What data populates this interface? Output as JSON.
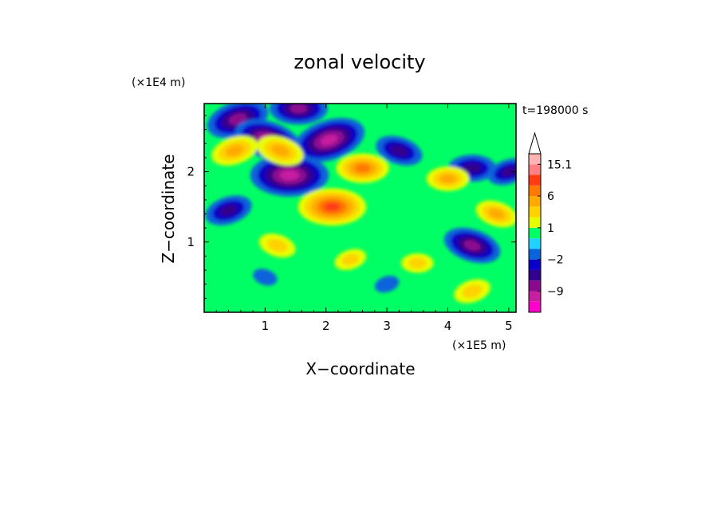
{
  "chart_data": {
    "type": "heatmap",
    "title": "zonal velocity",
    "xlabel": "X−coordinate",
    "ylabel": "Z−coordinate",
    "x_unit": "(×1E5 m)",
    "y_unit": "(×1E4 m)",
    "time_label": "t=198000 s",
    "xlim": [
      0,
      5.12
    ],
    "ylim": [
      0,
      2.97
    ],
    "x_ticks": [
      1,
      2,
      3,
      4,
      5
    ],
    "y_ticks": [
      1,
      2
    ],
    "colorbar": {
      "levels": [
        -15,
        -12,
        -9,
        -6,
        -4,
        -2,
        -1,
        0,
        1,
        2,
        4,
        6,
        9,
        12,
        15.1
      ],
      "colors": [
        "#ff00cc",
        "#c81ea0",
        "#8a0a8e",
        "#32008c",
        "#0a00c8",
        "#0a64dc",
        "#20d2ff",
        "#00ff64",
        "#e6ff00",
        "#ffd200",
        "#ffaa00",
        "#ff7800",
        "#ff3c14",
        "#ff8080",
        "#ffb4b4"
      ],
      "tick_labels": [
        "15.1",
        "6",
        "1",
        "−2",
        "−9"
      ],
      "tick_values": [
        15.1,
        6,
        1,
        -2,
        -9
      ]
    },
    "features": [
      {
        "x": 0.55,
        "z": 2.75,
        "u": -8
      },
      {
        "x": 1.55,
        "z": 2.9,
        "u": -7
      },
      {
        "x": 1.05,
        "z": 2.45,
        "u": -9
      },
      {
        "x": 2.05,
        "z": 2.45,
        "u": -10
      },
      {
        "x": 1.4,
        "z": 1.95,
        "u": -11
      },
      {
        "x": 3.2,
        "z": 2.3,
        "u": -5
      },
      {
        "x": 0.4,
        "z": 1.45,
        "u": -5
      },
      {
        "x": 4.4,
        "z": 2.05,
        "u": -5
      },
      {
        "x": 4.4,
        "z": 0.95,
        "u": -7
      },
      {
        "x": 5.0,
        "z": 2.0,
        "u": -4
      },
      {
        "x": 2.1,
        "z": 1.5,
        "u": 9
      },
      {
        "x": 1.25,
        "z": 2.3,
        "u": 5
      },
      {
        "x": 0.5,
        "z": 2.3,
        "u": 5
      },
      {
        "x": 2.6,
        "z": 2.05,
        "u": 6
      },
      {
        "x": 1.2,
        "z": 0.95,
        "u": 3
      },
      {
        "x": 2.4,
        "z": 0.75,
        "u": 2
      },
      {
        "x": 3.5,
        "z": 0.7,
        "u": 2
      },
      {
        "x": 4.8,
        "z": 1.4,
        "u": 4
      },
      {
        "x": 4.4,
        "z": 0.3,
        "u": 3
      },
      {
        "x": 4.0,
        "z": 1.9,
        "u": 4
      },
      {
        "x": 1.0,
        "z": 0.5,
        "u": -0.5
      },
      {
        "x": 3.0,
        "z": 0.4,
        "u": -0.5
      }
    ]
  }
}
